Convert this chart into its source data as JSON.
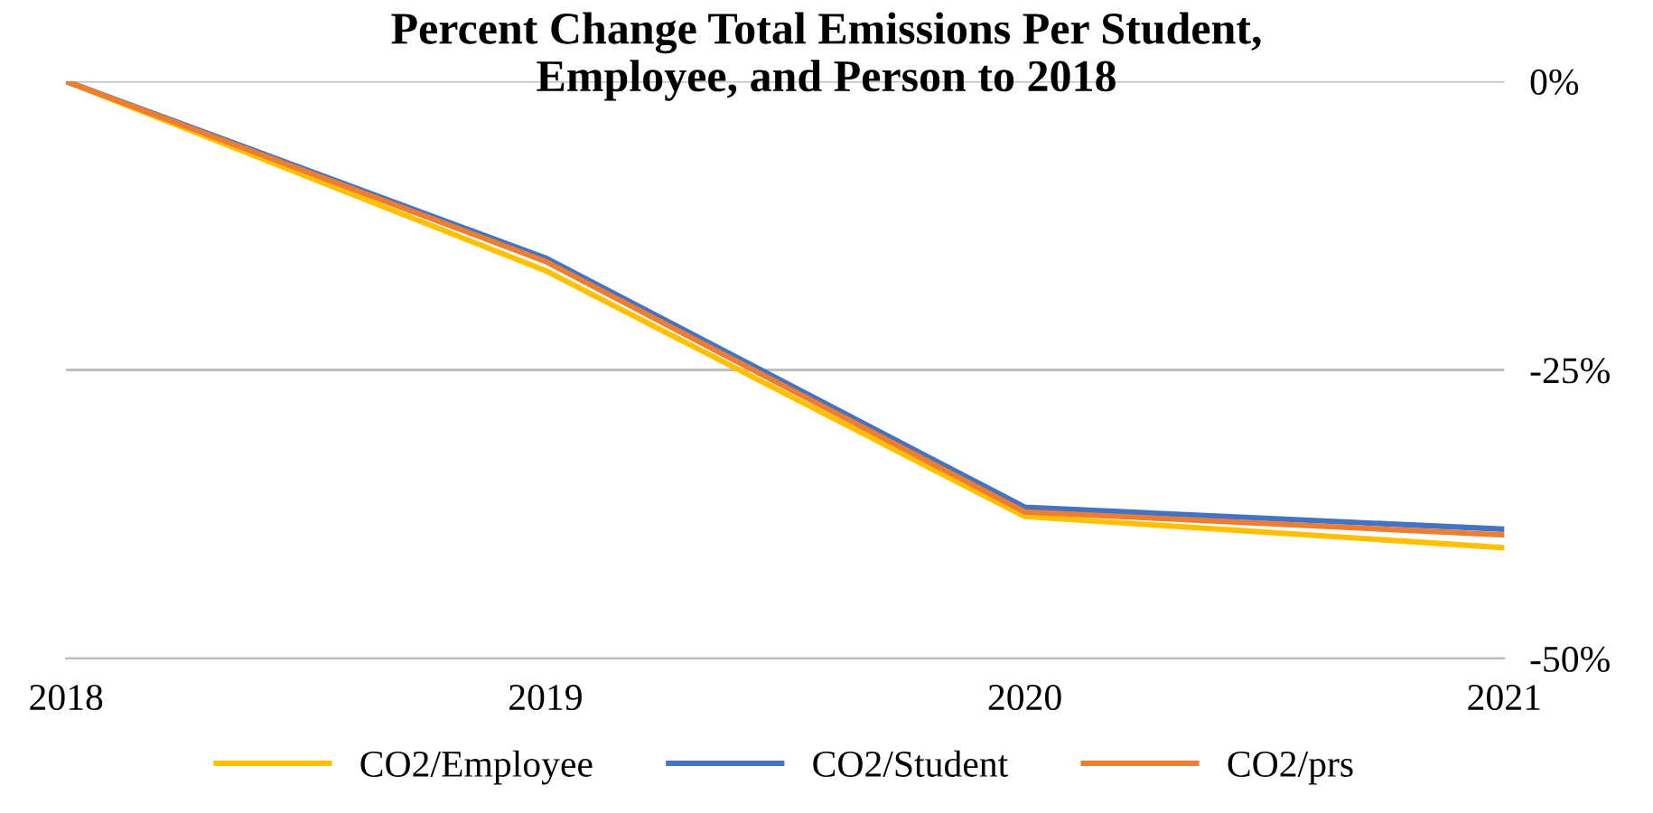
{
  "chart_data": {
    "type": "line",
    "title": "Percent Change Total Emissions Per Student,\nEmployee, and Person to 2018",
    "categories": [
      "2018",
      "2019",
      "2020",
      "2021"
    ],
    "series": [
      {
        "name": "CO2/Employee",
        "color": "#ffc000",
        "values": [
          0,
          -16.4,
          -37.7,
          -40.4
        ]
      },
      {
        "name": "CO2/Student",
        "color": "#4472c4",
        "values": [
          0,
          -15.3,
          -36.9,
          -38.8
        ]
      },
      {
        "name": "CO2/prs",
        "color": "#ed7d31",
        "values": [
          0,
          -15.6,
          -37.3,
          -39.3
        ]
      }
    ],
    "ylim": [
      -50,
      0
    ],
    "yticks": [
      {
        "value": 0,
        "label": "0%"
      },
      {
        "value": -25,
        "label": "-25%"
      },
      {
        "value": -50,
        "label": "-50%"
      }
    ],
    "grid": "y",
    "legend": "bottom",
    "marker": "none",
    "line_style": "solid"
  }
}
